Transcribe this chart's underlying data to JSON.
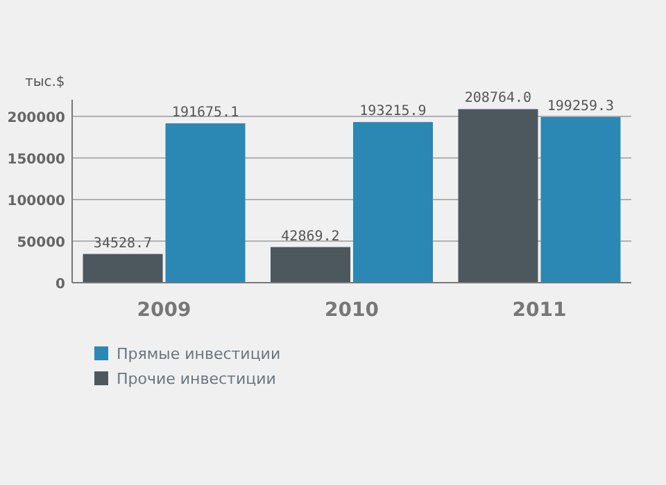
{
  "chart_data": {
    "type": "bar",
    "ylabel": "тыс.$",
    "categories": [
      "2009",
      "2010",
      "2011"
    ],
    "series": [
      {
        "name": "Прямые инвестиции",
        "color": "#2b88b5",
        "values": [
          191675.1,
          193215.9,
          199259.3
        ],
        "value_labels": [
          "191675.1",
          "193215.9",
          "199259.3"
        ]
      },
      {
        "name": "Прочие инвестиции",
        "color": "#4d585e",
        "values": [
          34528.7,
          42869.2,
          208764
        ],
        "value_labels": [
          "34528.7",
          "42869.2",
          "208764.0"
        ]
      }
    ],
    "ylim": [
      0,
      220000
    ],
    "yticks": [
      0,
      50000,
      100000,
      150000,
      200000
    ],
    "grid": "y",
    "legend": "bottom left"
  }
}
